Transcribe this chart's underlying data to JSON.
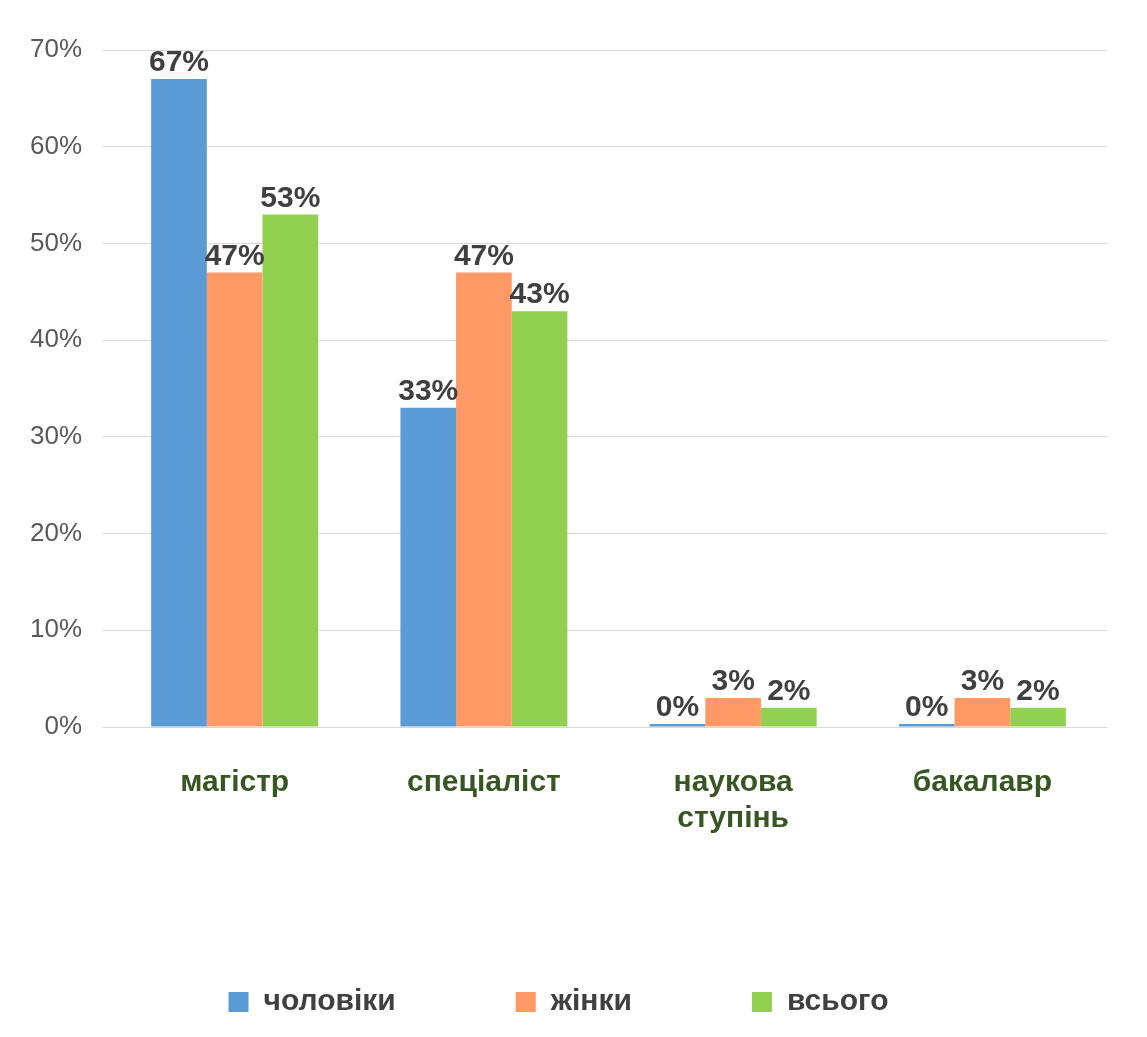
{
  "chart_data": {
    "type": "bar",
    "categories": [
      "магістр",
      "спеціаліст",
      "наукова ступінь",
      "бакалавр"
    ],
    "series": [
      {
        "name": "чоловіки",
        "color": "#5b9bd5",
        "values": [
          67,
          33,
          0,
          0
        ],
        "value_labels": [
          "67%",
          "33%",
          "0%",
          "0%"
        ]
      },
      {
        "name": "жінки",
        "color": "#ff9966",
        "values": [
          47,
          47,
          3,
          3
        ],
        "value_labels": [
          "47%",
          "47%",
          "3%",
          "3%"
        ]
      },
      {
        "name": "всього",
        "color": "#92d050",
        "values": [
          53,
          43,
          2,
          2
        ],
        "value_labels": [
          "53%",
          "43%",
          "2%",
          "2%"
        ]
      }
    ],
    "ylim": [
      0,
      70
    ],
    "yticks": [
      {
        "value": 0,
        "label": "0%"
      },
      {
        "value": 10,
        "label": "10%"
      },
      {
        "value": 20,
        "label": "20%"
      },
      {
        "value": 30,
        "label": "30%"
      },
      {
        "value": 40,
        "label": "40%"
      },
      {
        "value": 50,
        "label": "50%"
      },
      {
        "value": 60,
        "label": "60%"
      },
      {
        "value": 70,
        "label": "70%"
      }
    ],
    "grid": "y",
    "legend": "bottom"
  }
}
